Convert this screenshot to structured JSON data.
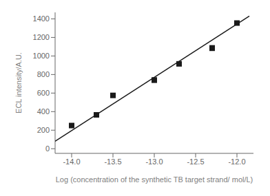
{
  "chart_data": {
    "type": "scatter",
    "xlabel": "Log (concentration of the synthetic TB target strand/ mol/L)",
    "ylabel": "ECL intensity/A.U.",
    "series": [
      {
        "type": "line",
        "color": "#1a1a1a",
        "line_style": "solid",
        "x": [
          -14.2,
          -11.85
        ],
        "values": [
          80,
          1430
        ]
      },
      {
        "type": "scatter",
        "marker": "square",
        "color": "#1a1a1a",
        "x": [
          -14.0,
          -13.7,
          -13.5,
          -13.0,
          -12.7,
          -12.3,
          -12.0
        ],
        "values": [
          250,
          365,
          575,
          740,
          915,
          1085,
          1355
        ],
        "y_err": [
          12,
          12,
          15,
          25,
          15,
          28,
          18
        ]
      }
    ],
    "xlim": [
      -14.2,
      -11.8
    ],
    "ylim": [
      -50,
      1470
    ],
    "xticks": [
      {
        "value": -14.0,
        "label": "-14.0"
      },
      -13.5,
      {
        "value": -13.0,
        "label": "-13.0"
      },
      -12.5,
      {
        "value": -12.0,
        "label": "-12.0"
      }
    ],
    "yticks": [
      0,
      200,
      400,
      600,
      800,
      1000,
      1200,
      1400
    ],
    "grid": false
  }
}
